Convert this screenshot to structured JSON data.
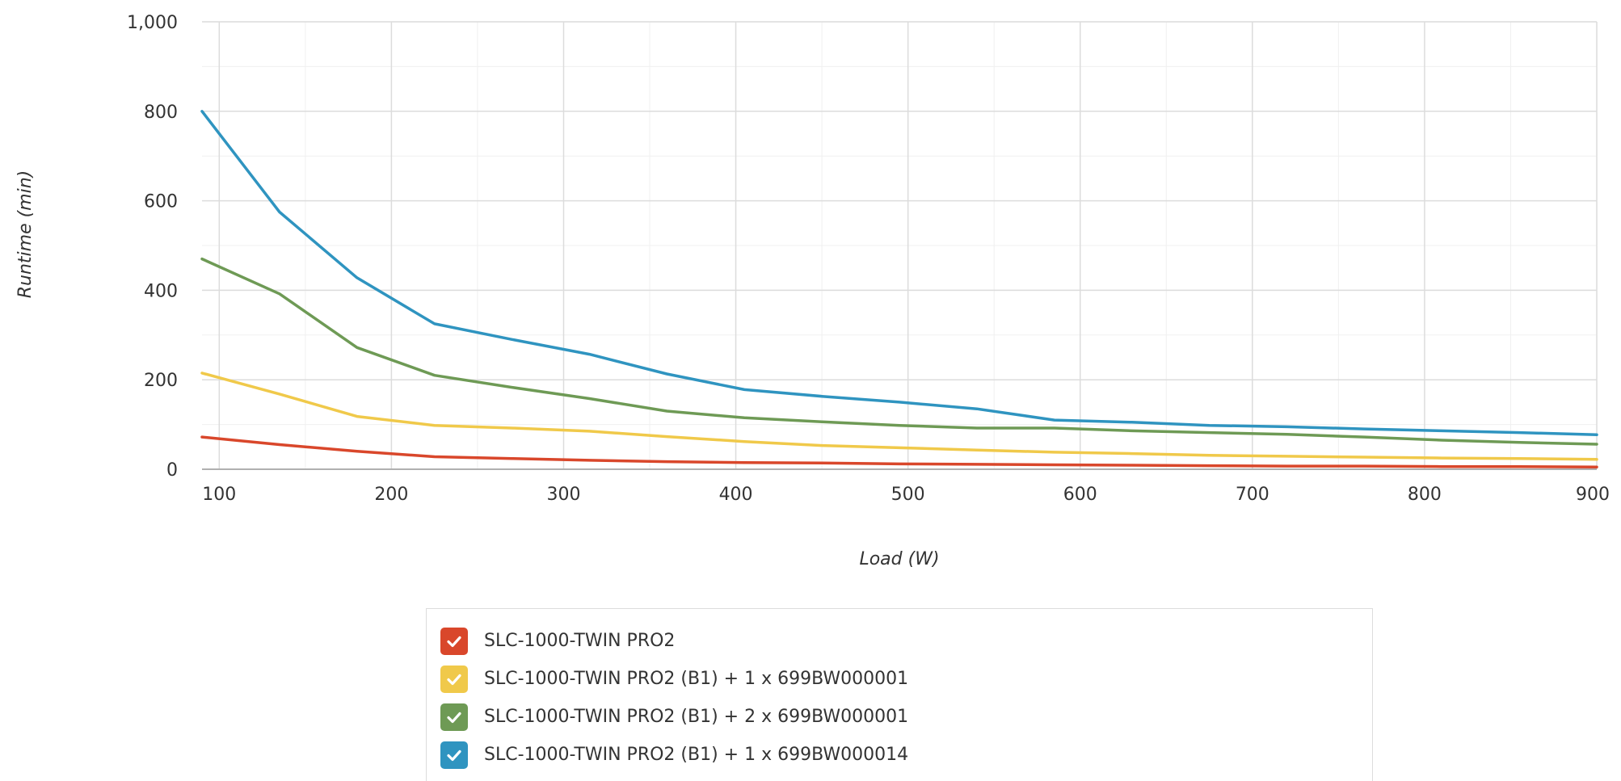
{
  "chart_data": {
    "type": "line",
    "xlabel": "Load (W)",
    "ylabel": "Runtime (min)",
    "xlim": [
      90,
      900
    ],
    "ylim": [
      0,
      1000
    ],
    "x_ticks": [
      100,
      200,
      300,
      400,
      500,
      600,
      700,
      800,
      900
    ],
    "y_ticks": [
      0,
      200,
      400,
      600,
      800,
      1000
    ],
    "y_tick_labels": [
      "0",
      "200",
      "400",
      "600",
      "800",
      "1,000"
    ],
    "grid": true,
    "legend_position": "bottom-center",
    "x": [
      90,
      135,
      180,
      225,
      270,
      315,
      360,
      405,
      450,
      495,
      540,
      585,
      630,
      675,
      720,
      765,
      810,
      855,
      900
    ],
    "series": [
      {
        "name": "SLC-1000-TWIN PRO2",
        "color": "#d9472b",
        "checked": true,
        "values": [
          72,
          55,
          40,
          28,
          24,
          20,
          17,
          15,
          14,
          12,
          11,
          10,
          9,
          8,
          7,
          7,
          6,
          6,
          5
        ]
      },
      {
        "name": "SLC-1000-TWIN PRO2 (B1) + 1 x 699BW000001",
        "color": "#f0c94a",
        "checked": true,
        "values": [
          215,
          168,
          118,
          98,
          92,
          85,
          73,
          62,
          53,
          48,
          43,
          38,
          35,
          31,
          29,
          27,
          25,
          24,
          22
        ]
      },
      {
        "name": "SLC-1000-TWIN PRO2 (B1) + 2 x 699BW000001",
        "color": "#6e9a55",
        "checked": true,
        "values": [
          470,
          392,
          272,
          210,
          183,
          158,
          130,
          115,
          106,
          98,
          92,
          92,
          86,
          82,
          78,
          72,
          65,
          60,
          56
        ]
      },
      {
        "name": "SLC-1000-TWIN PRO2 (B1) + 1 x 699BW000014",
        "color": "#2f94c0",
        "checked": true,
        "values": [
          800,
          575,
          428,
          325,
          290,
          257,
          213,
          178,
          163,
          150,
          135,
          110,
          105,
          98,
          95,
          90,
          86,
          82,
          77
        ]
      }
    ]
  }
}
